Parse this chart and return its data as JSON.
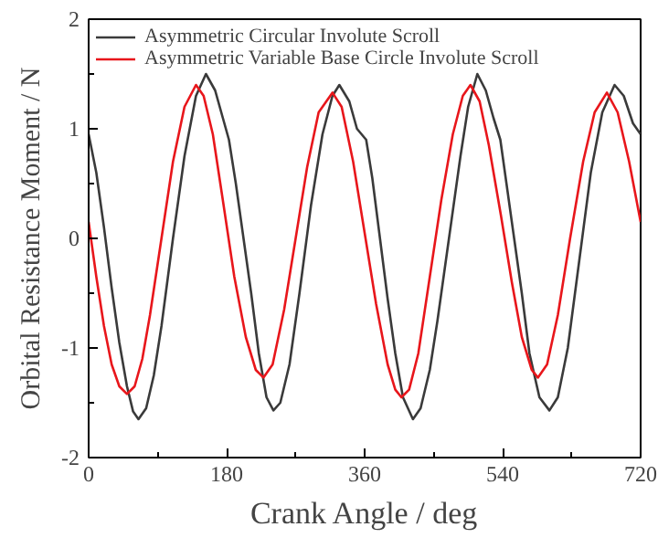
{
  "chart_data": {
    "type": "line",
    "xlabel": "Crank Angle / deg",
    "ylabel": "Orbital Resistance Moment / N",
    "xlim": [
      0,
      720
    ],
    "xticks": [
      0,
      180,
      360,
      540,
      720
    ],
    "ylim": [
      -2,
      2
    ],
    "yticks": [
      -2,
      -1,
      0,
      1,
      2
    ],
    "grid": false,
    "legend": "top left",
    "marker": "none",
    "line_style": "solid",
    "series": [
      {
        "name": "Asymmetric Circular Involute Scroll",
        "color": "#3a3a3a",
        "x": [
          0,
          10,
          20,
          30,
          40,
          50,
          58,
          65,
          75,
          85,
          95,
          110,
          125,
          140,
          153,
          165,
          175,
          183,
          192,
          202,
          212,
          222,
          232,
          241,
          250,
          262,
          275,
          290,
          305,
          318,
          327,
          340,
          350,
          362,
          370,
          380,
          390,
          400,
          410,
          423,
          433,
          445,
          455,
          470,
          485,
          495,
          507,
          518,
          528,
          537,
          545,
          555,
          565,
          575,
          588,
          601,
          612,
          625,
          640,
          655,
          670,
          686,
          698,
          710,
          720
        ],
        "values": [
          0.95,
          0.6,
          0.1,
          -0.45,
          -0.95,
          -1.35,
          -1.58,
          -1.65,
          -1.55,
          -1.25,
          -0.8,
          0,
          0.75,
          1.3,
          1.5,
          1.35,
          1.1,
          0.9,
          0.5,
          0,
          -0.5,
          -1.05,
          -1.45,
          -1.57,
          -1.5,
          -1.15,
          -0.5,
          0.3,
          0.95,
          1.3,
          1.4,
          1.25,
          1.0,
          0.9,
          0.55,
          0,
          -0.55,
          -1.05,
          -1.45,
          -1.65,
          -1.55,
          -1.2,
          -0.75,
          0,
          0.75,
          1.2,
          1.5,
          1.35,
          1.1,
          0.9,
          0.5,
          0,
          -0.5,
          -1.05,
          -1.45,
          -1.57,
          -1.45,
          -1.0,
          -0.2,
          0.6,
          1.15,
          1.4,
          1.3,
          1.05,
          0.95
        ]
      },
      {
        "name": "Asymmetric Variable Base Circle Involute Scroll",
        "color": "#e8161b",
        "x": [
          0,
          10,
          20,
          30,
          40,
          50,
          60,
          70,
          80,
          95,
          110,
          125,
          140,
          150,
          162,
          175,
          190,
          205,
          218,
          228,
          240,
          255,
          270,
          285,
          300,
          318,
          330,
          345,
          360,
          375,
          390,
          400,
          408,
          418,
          430,
          445,
          460,
          475,
          488,
          498,
          510,
          522,
          538,
          552,
          565,
          578,
          586,
          598,
          612,
          628,
          645,
          660,
          676,
          690,
          705,
          720
        ],
        "values": [
          0.15,
          -0.35,
          -0.8,
          -1.15,
          -1.35,
          -1.42,
          -1.35,
          -1.1,
          -0.7,
          0,
          0.7,
          1.2,
          1.4,
          1.3,
          0.95,
          0.35,
          -0.35,
          -0.9,
          -1.2,
          -1.27,
          -1.15,
          -0.65,
          0,
          0.65,
          1.15,
          1.33,
          1.2,
          0.7,
          0.05,
          -0.6,
          -1.15,
          -1.38,
          -1.45,
          -1.38,
          -1.05,
          -0.35,
          0.35,
          0.95,
          1.3,
          1.4,
          1.25,
          0.85,
          0.2,
          -0.4,
          -0.9,
          -1.2,
          -1.27,
          -1.15,
          -0.7,
          0,
          0.7,
          1.15,
          1.33,
          1.15,
          0.7,
          0.15
        ]
      }
    ]
  }
}
